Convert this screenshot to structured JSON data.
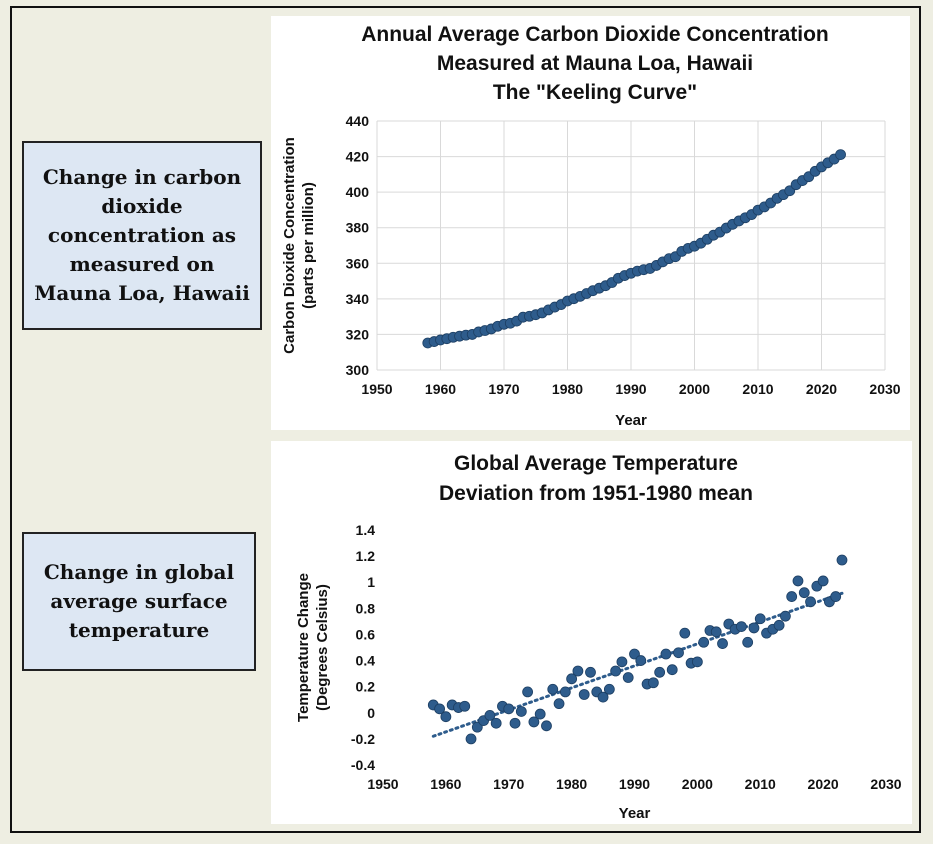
{
  "side_labels": {
    "co2": "Change in carbon dioxide concentration as measured on Mauna Loa, Hawaii",
    "temp": "Change in global average surface temperature"
  },
  "chart_data": [
    {
      "type": "scatter",
      "title_lines": [
        "Annual Average Carbon Dioxide Concentration",
        "Measured at Mauna Loa, Hawaii",
        "The \"Keeling Curve\""
      ],
      "xlabel": "Year",
      "ylabel_lines": [
        "Carbon Dioxide Concentration",
        "(parts per million)"
      ],
      "xlim": [
        1950,
        2030
      ],
      "ylim": [
        300,
        440
      ],
      "xticks": [
        1950,
        1960,
        1970,
        1980,
        1990,
        2000,
        2010,
        2020,
        2030
      ],
      "yticks": [
        300,
        320,
        340,
        360,
        380,
        400,
        420,
        440
      ],
      "grid": true,
      "marker_color": "#2e5c8c",
      "x": [
        1958,
        1959,
        1960,
        1961,
        1962,
        1963,
        1964,
        1965,
        1966,
        1967,
        1968,
        1969,
        1970,
        1971,
        1972,
        1973,
        1974,
        1975,
        1976,
        1977,
        1978,
        1979,
        1980,
        1981,
        1982,
        1983,
        1984,
        1985,
        1986,
        1987,
        1988,
        1989,
        1990,
        1991,
        1992,
        1993,
        1994,
        1995,
        1996,
        1997,
        1998,
        1999,
        2000,
        2001,
        2002,
        2003,
        2004,
        2005,
        2006,
        2007,
        2008,
        2009,
        2010,
        2011,
        2012,
        2013,
        2014,
        2015,
        2016,
        2017,
        2018,
        2019,
        2020,
        2021,
        2022,
        2023
      ],
      "y": [
        315.2,
        316.0,
        316.9,
        317.6,
        318.4,
        319.0,
        319.6,
        320.0,
        321.4,
        322.2,
        323.1,
        324.6,
        325.7,
        326.3,
        327.5,
        329.7,
        330.2,
        331.1,
        332.1,
        333.8,
        335.4,
        336.8,
        338.8,
        340.1,
        341.4,
        343.0,
        344.6,
        346.0,
        347.4,
        349.2,
        351.6,
        353.1,
        354.4,
        355.6,
        356.4,
        357.1,
        358.8,
        360.8,
        362.6,
        363.7,
        366.7,
        368.4,
        369.6,
        371.3,
        373.5,
        375.8,
        377.5,
        379.8,
        381.9,
        383.8,
        385.6,
        387.4,
        389.9,
        391.7,
        393.9,
        396.5,
        398.6,
        400.8,
        404.2,
        406.5,
        408.7,
        411.7,
        414.2,
        416.5,
        418.6,
        421.1
      ]
    },
    {
      "type": "scatter",
      "title_lines": [
        "Global Average Temperature",
        "Deviation from 1951-1980 mean"
      ],
      "xlabel": "Year",
      "ylabel_lines": [
        "Temperature Change",
        "(Degrees Celsius)"
      ],
      "xlim": [
        1950,
        2030
      ],
      "ylim": [
        -0.4,
        1.4
      ],
      "xticks": [
        1950,
        1960,
        1970,
        1980,
        1990,
        2000,
        2010,
        2020,
        2030
      ],
      "yticks": [
        -0.4,
        -0.2,
        0,
        0.2,
        0.4,
        0.6,
        0.8,
        1,
        1.2,
        1.4
      ],
      "grid": false,
      "trendline": "dotted",
      "marker_color": "#2e5c8c",
      "x": [
        1958,
        1959,
        1960,
        1961,
        1962,
        1963,
        1964,
        1965,
        1966,
        1967,
        1968,
        1969,
        1970,
        1971,
        1972,
        1973,
        1974,
        1975,
        1976,
        1977,
        1978,
        1979,
        1980,
        1981,
        1982,
        1983,
        1984,
        1985,
        1986,
        1987,
        1988,
        1989,
        1990,
        1991,
        1992,
        1993,
        1994,
        1995,
        1996,
        1997,
        1998,
        1999,
        2000,
        2001,
        2002,
        2003,
        2004,
        2005,
        2006,
        2007,
        2008,
        2009,
        2010,
        2011,
        2012,
        2013,
        2014,
        2015,
        2016,
        2017,
        2018,
        2019,
        2020,
        2021,
        2022,
        2023
      ],
      "y": [
        0.06,
        0.03,
        -0.03,
        0.06,
        0.04,
        0.05,
        -0.2,
        -0.11,
        -0.06,
        -0.02,
        -0.08,
        0.05,
        0.03,
        -0.08,
        0.01,
        0.16,
        -0.07,
        -0.01,
        -0.1,
        0.18,
        0.07,
        0.16,
        0.26,
        0.32,
        0.14,
        0.31,
        0.16,
        0.12,
        0.18,
        0.32,
        0.39,
        0.27,
        0.45,
        0.4,
        0.22,
        0.23,
        0.31,
        0.45,
        0.33,
        0.46,
        0.61,
        0.38,
        0.39,
        0.54,
        0.63,
        0.62,
        0.53,
        0.68,
        0.64,
        0.66,
        0.54,
        0.65,
        0.72,
        0.61,
        0.64,
        0.67,
        0.74,
        0.89,
        1.01,
        0.92,
        0.85,
        0.97,
        1.01,
        0.85,
        0.89,
        1.17
      ]
    }
  ]
}
